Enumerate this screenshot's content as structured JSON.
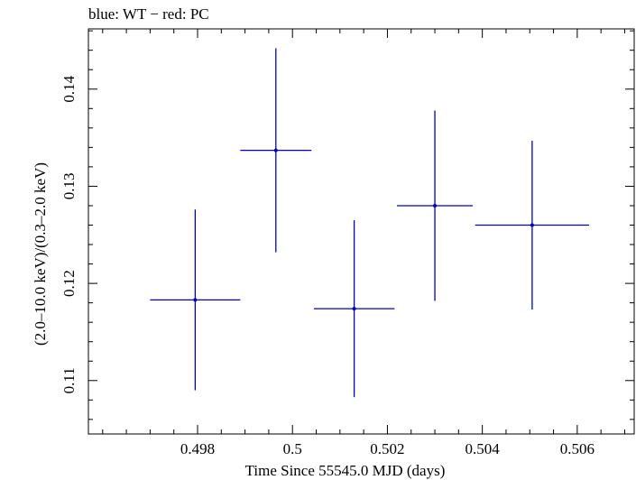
{
  "header": {
    "title": "blue: WT − red: PC"
  },
  "chart_data": {
    "type": "scatter",
    "title": "blue: WT − red: PC",
    "xlabel": "Time Since 55545.0 MJD (days)",
    "ylabel": "(2.0–10.0 keV)/(0.3–2.0 keV)",
    "xlim": [
      0.4957,
      0.5072
    ],
    "ylim": [
      0.1045,
      0.1462
    ],
    "xticks": [
      0.498,
      0.5,
      0.502,
      0.504,
      0.506
    ],
    "xtick_labels": [
      "0.498",
      "0.5",
      "0.502",
      "0.504",
      "0.506"
    ],
    "yticks": [
      0.11,
      0.12,
      0.13,
      0.14
    ],
    "ytick_labels": [
      "0.11",
      "0.12",
      "0.13",
      "0.14"
    ],
    "grid": false,
    "series": [
      {
        "color": "#0000cc",
        "points": [
          {
            "x": 0.49795,
            "xerr": 0.00095,
            "y": 0.1183,
            "yerr": 0.0093
          },
          {
            "x": 0.49965,
            "xerr": 0.00075,
            "y": 0.1337,
            "yerr": 0.0105
          },
          {
            "x": 0.5013,
            "xerr": 0.00085,
            "y": 0.1174,
            "yerr": 0.0091
          },
          {
            "x": 0.503,
            "xerr": 0.0008,
            "y": 0.128,
            "yerr": 0.0098
          },
          {
            "x": 0.50505,
            "xerr": 0.0012,
            "y": 0.126,
            "yerr": 0.0087
          }
        ]
      }
    ]
  }
}
